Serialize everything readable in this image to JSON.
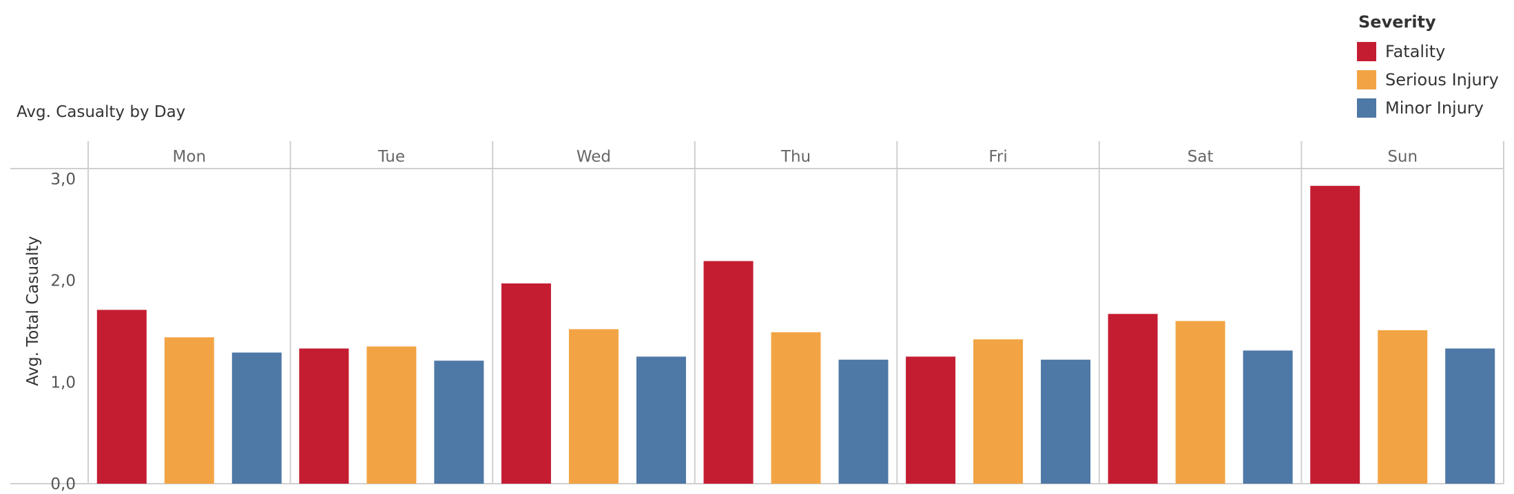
{
  "chart_data": {
    "type": "bar",
    "title": "Avg. Casualty by Day",
    "ylabel": "Avg. Total Casualty",
    "xlabel": "",
    "legend_title": "Severity",
    "legend_position": "top-right",
    "categories": [
      "Mon",
      "Tue",
      "Wed",
      "Thu",
      "Fri",
      "Sat",
      "Sun"
    ],
    "series": [
      {
        "name": "Fatality",
        "color": "#c41d32",
        "values": [
          1.71,
          1.33,
          1.97,
          2.19,
          1.25,
          1.67,
          2.93
        ]
      },
      {
        "name": "Serious Injury",
        "color": "#f2a444",
        "values": [
          1.44,
          1.35,
          1.52,
          1.49,
          1.42,
          1.6,
          1.51
        ]
      },
      {
        "name": "Minor Injury",
        "color": "#4e78a6",
        "values": [
          1.29,
          1.21,
          1.25,
          1.22,
          1.22,
          1.31,
          1.33
        ]
      }
    ],
    "ylim": [
      0,
      3.1
    ],
    "yticks": [
      "0,0",
      "1,0",
      "2,0",
      "3,0"
    ],
    "grid": false
  }
}
